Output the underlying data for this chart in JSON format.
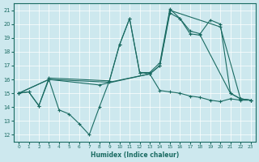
{
  "xlabel": "Humidex (Indice chaleur)",
  "bg_color": "#cde8ee",
  "line_color": "#1a6b62",
  "grid_color": "#ffffff",
  "xlim": [
    -0.5,
    23.5
  ],
  "ylim": [
    11.5,
    21.5
  ],
  "xticks": [
    0,
    1,
    2,
    3,
    4,
    5,
    6,
    7,
    8,
    9,
    10,
    11,
    12,
    13,
    14,
    15,
    16,
    17,
    18,
    19,
    20,
    21,
    22,
    23
  ],
  "yticks": [
    12,
    13,
    14,
    15,
    16,
    17,
    18,
    19,
    20,
    21
  ],
  "lines": [
    {
      "x": [
        0,
        1,
        2,
        3,
        4,
        5,
        6,
        7,
        8,
        9,
        10,
        11,
        12,
        13,
        14,
        15,
        16,
        17,
        18,
        19,
        20,
        21,
        22,
        23
      ],
      "y": [
        15.0,
        15.1,
        14.1,
        16.0,
        13.8,
        13.5,
        12.8,
        12.0,
        14.0,
        15.9,
        18.5,
        20.4,
        16.5,
        16.4,
        15.2,
        15.1,
        15.0,
        14.8,
        14.7,
        14.5,
        14.4,
        14.6,
        14.5,
        14.5
      ]
    },
    {
      "x": [
        0,
        1,
        2,
        3,
        9,
        10,
        11,
        12,
        13,
        14,
        15,
        16,
        17,
        18,
        21,
        22,
        23
      ],
      "y": [
        15.0,
        15.1,
        14.1,
        16.1,
        15.9,
        18.5,
        20.4,
        16.5,
        16.5,
        17.2,
        21.1,
        20.4,
        19.3,
        19.2,
        15.0,
        14.6,
        14.5
      ]
    },
    {
      "x": [
        0,
        3,
        8,
        13,
        14,
        15,
        16,
        17,
        18,
        19,
        20,
        21,
        22,
        23
      ],
      "y": [
        15.0,
        16.0,
        15.6,
        16.4,
        17.0,
        20.8,
        20.4,
        19.5,
        19.3,
        20.3,
        20.0,
        15.0,
        14.6,
        14.5
      ]
    },
    {
      "x": [
        0,
        3,
        9,
        13,
        14,
        15,
        20,
        22,
        23
      ],
      "y": [
        15.0,
        16.0,
        15.8,
        16.4,
        17.0,
        21.0,
        19.8,
        14.6,
        14.5
      ]
    }
  ]
}
